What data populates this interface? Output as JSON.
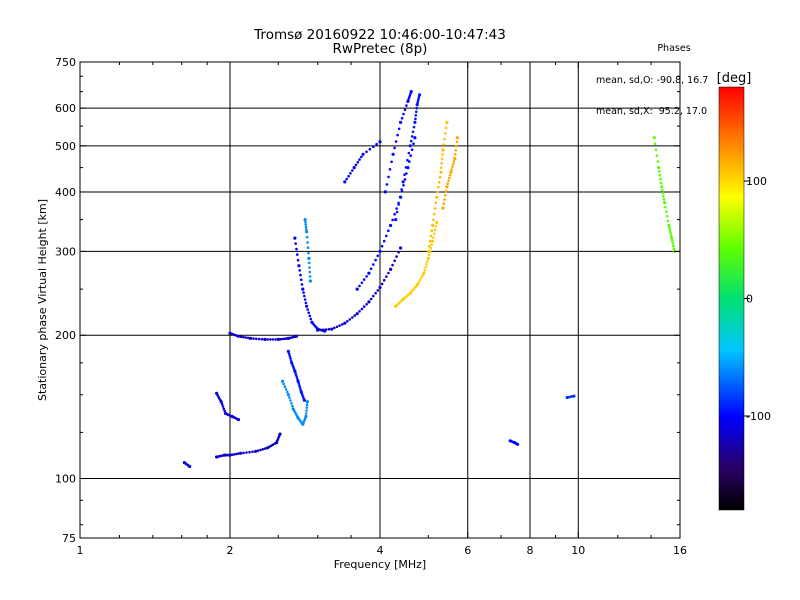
{
  "header": {
    "title": "Tromsø 20160922 10:46:00-10:47:43",
    "subtitle": "RwPretec (8p)"
  },
  "phase_legend": {
    "title": "Phases",
    "o_line": "mean, sd,O: -90.8, 16.7",
    "x_line": "mean, sd,X:  95.2, 17.0"
  },
  "colorbar": {
    "unit_label": "[deg]",
    "tick_labels": [
      "100",
      "0",
      "-100"
    ],
    "tick_values": [
      100,
      0,
      -100
    ],
    "range": [
      -180,
      180
    ],
    "palette": "rainbow"
  },
  "chart_data": {
    "type": "scatter",
    "xlabel": "Frequency [MHz]",
    "ylabel": "Stationary phase Virtual Height [km]",
    "xscale": "log",
    "yscale": "log",
    "xlim": [
      1,
      16
    ],
    "ylim": [
      75,
      750
    ],
    "x_ticks": [
      1,
      2,
      4,
      6,
      8,
      10,
      16
    ],
    "y_ticks": [
      75,
      100,
      200,
      300,
      400,
      500,
      600,
      750
    ],
    "x_grid": [
      2,
      4,
      6,
      8,
      10
    ],
    "y_grid": [
      100,
      200,
      300,
      400,
      500,
      600
    ],
    "grid": true,
    "color_encodes": "phase [deg]",
    "series": [
      {
        "segments": [
          {
            "x": [
              1.62,
              1.66
            ],
            "y": [
              108,
              106
            ],
            "phase": -110
          },
          {
            "x": [
              1.88,
              1.95,
              2.0,
              2.1,
              2.25,
              2.38,
              2.48,
              2.52
            ],
            "y": [
              111,
              112,
              112,
              113,
              114,
              116,
              119,
              124
            ],
            "phase": -115
          },
          {
            "x": [
              1.88,
              1.92,
              1.96,
              2.02,
              2.08
            ],
            "y": [
              151,
              145,
              137,
              135,
              133
            ],
            "phase": -110
          },
          {
            "x": [
              2.0,
              2.08,
              2.2,
              2.35,
              2.5,
              2.62,
              2.72
            ],
            "y": [
              202,
              199,
              197,
              196,
              196,
              197,
              199
            ],
            "phase": -115
          },
          {
            "x": [
              2.55,
              2.62,
              2.68,
              2.74,
              2.8,
              2.84,
              2.86
            ],
            "y": [
              160,
              150,
              140,
              134,
              130,
              135,
              145
            ],
            "phase": -60
          },
          {
            "x": [
              2.62,
              2.66,
              2.7,
              2.74,
              2.78,
              2.82
            ],
            "y": [
              185,
              175,
              168,
              160,
              152,
              146
            ],
            "phase": -95
          },
          {
            "x": [
              2.7,
              2.75,
              2.8,
              2.85,
              2.92,
              3.0,
              3.1
            ],
            "y": [
              320,
              280,
              250,
              230,
              213,
              206,
              204
            ],
            "phase": -100
          },
          {
            "x": [
              2.83,
              2.85,
              2.88,
              2.9
            ],
            "y": [
              350,
              330,
              290,
              260
            ],
            "phase": -60
          },
          {
            "x": [
              3.0,
              3.2,
              3.4,
              3.6,
              3.8,
              4.0,
              4.2,
              4.4
            ],
            "y": [
              205,
              206,
              212,
              222,
              235,
              252,
              275,
              305
            ],
            "phase": -115
          },
          {
            "x": [
              3.6,
              3.8,
              4.0,
              4.2,
              4.4,
              4.55,
              4.7
            ],
            "y": [
              250,
              270,
              300,
              340,
              390,
              450,
              520
            ],
            "phase": -100
          },
          {
            "x": [
              4.3,
              4.45,
              4.6,
              4.7,
              4.75,
              4.8
            ],
            "y": [
              350,
              420,
              500,
              560,
              610,
              640
            ],
            "phase": -95
          },
          {
            "x": [
              4.1,
              4.25,
              4.4,
              4.55,
              4.62
            ],
            "y": [
              400,
              480,
              560,
              620,
              650
            ],
            "phase": -100
          },
          {
            "x": [
              3.4,
              3.55,
              3.7,
              4.0
            ],
            "y": [
              420,
              450,
              480,
              510
            ],
            "phase": -105
          },
          {
            "x": [
              4.3,
              4.45,
              4.6,
              4.75,
              4.9,
              5.0,
              5.1,
              5.2
            ],
            "y": [
              230,
              238,
              245,
              255,
              270,
              290,
              315,
              345
            ],
            "phase": 105
          },
          {
            "x": [
              5.0,
              5.1,
              5.2,
              5.3,
              5.35,
              5.45
            ],
            "y": [
              300,
              340,
              390,
              440,
              490,
              560
            ],
            "phase": 110
          },
          {
            "x": [
              5.35,
              5.45,
              5.55,
              5.65,
              5.72
            ],
            "y": [
              370,
              410,
              440,
              470,
              520
            ],
            "phase": 120
          },
          {
            "x": [
              7.3,
              7.45,
              7.55
            ],
            "y": [
              120,
              119,
              118
            ],
            "phase": -100
          },
          {
            "x": [
              9.5,
              9.8
            ],
            "y": [
              148,
              149
            ],
            "phase": -85
          },
          {
            "x": [
              14.2,
              14.5,
              14.7,
              14.9,
              15.2,
              15.4,
              15.6
            ],
            "y": [
              520,
              450,
              410,
              380,
              340,
              320,
              300
            ],
            "phase": 40
          }
        ]
      }
    ]
  }
}
